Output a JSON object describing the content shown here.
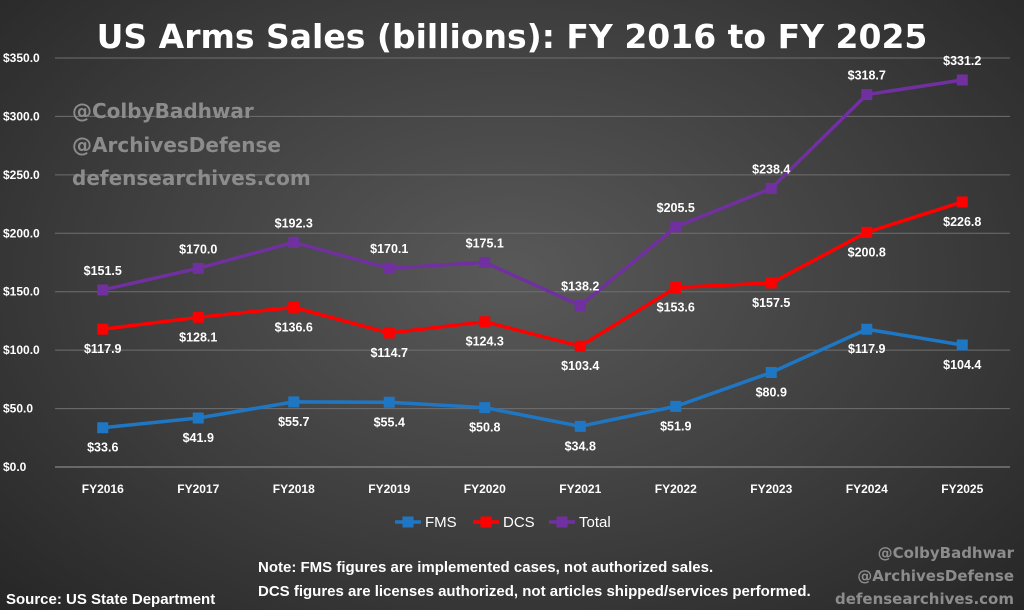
{
  "chart_data": {
    "type": "line",
    "title": "US Arms Sales (billions): FY 2016 to FY 2025",
    "categories": [
      "FY2016",
      "FY2017",
      "FY2018",
      "FY2019",
      "FY2020",
      "FY2021",
      "FY2022",
      "FY2023",
      "FY2024",
      "FY2025"
    ],
    "y_ticks": [
      "$0.0",
      "$50.0",
      "$100.0",
      "$150.0",
      "$200.0",
      "$250.0",
      "$300.0",
      "$350.0"
    ],
    "ylim": [
      0,
      350
    ],
    "y_step": 50,
    "grid": true,
    "legend_position": "bottom",
    "series": [
      {
        "name": "FMS",
        "color": "#1f77c4",
        "values": [
          33.6,
          41.9,
          55.7,
          55.4,
          50.8,
          34.8,
          51.9,
          80.9,
          117.9,
          104.4
        ],
        "labels": [
          "$33.6",
          "$41.9",
          "$55.7",
          "$55.4",
          "$50.8",
          "$34.8",
          "$51.9",
          "$80.9",
          "$117.9",
          "$104.4"
        ],
        "label_position": "below"
      },
      {
        "name": "DCS",
        "color": "#ff0000",
        "values": [
          117.9,
          128.1,
          136.6,
          114.7,
          124.3,
          103.4,
          153.6,
          157.5,
          200.8,
          226.8
        ],
        "labels": [
          "$117.9",
          "$128.1",
          "$136.6",
          "$114.7",
          "$124.3",
          "$103.4",
          "$153.6",
          "$157.5",
          "$200.8",
          "$226.8"
        ],
        "label_position": "below"
      },
      {
        "name": "Total",
        "color": "#7030a0",
        "values": [
          151.5,
          170.0,
          192.3,
          170.1,
          175.1,
          138.2,
          205.5,
          238.4,
          318.7,
          331.2
        ],
        "labels": [
          "$151.5",
          "$170.0",
          "$192.3",
          "$170.1",
          "$175.1",
          "$138.2",
          "$205.5",
          "$238.4",
          "$318.7",
          "$331.2"
        ],
        "label_position": "above"
      }
    ]
  },
  "watermarks": {
    "handle_1": "@ColbyBadhwar",
    "handle_2": "@ArchivesDefense",
    "site": "defensearchives.com"
  },
  "note": {
    "line_1": "Note: FMS figures are implemented cases, not authorized sales.",
    "line_2": "DCS figures are licenses authorized, not articles shipped/services performed."
  },
  "source": "Source: US State Department"
}
